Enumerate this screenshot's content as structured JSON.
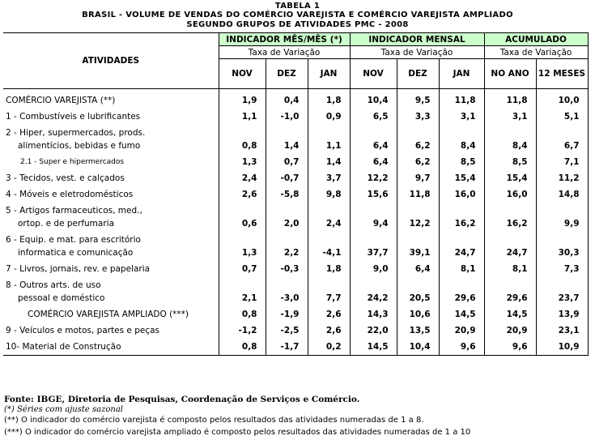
{
  "title": {
    "line1": "TABELA 1",
    "line2": "BRASIL - VOLUME DE VENDAS DO COMÉRCIO VAREJISTA E COMÉRCIO VAREJISTA AMPLIADO",
    "line3": "SEGUNDO GRUPOS DE ATIVIDADES PMC - 2008"
  },
  "header": {
    "activities": "ATIVIDADES",
    "group1": "INDICADOR MÊS/MÊS (*)",
    "group2": "INDICADOR MENSAL",
    "group3": "ACUMULADO",
    "rate": "Taxa de Variação",
    "cols": [
      "NOV",
      "DEZ",
      "JAN",
      "NOV",
      "DEZ",
      "JAN",
      "NO ANO",
      "12 MESES"
    ],
    "header_bg": "#ccffcc"
  },
  "rows": [
    {
      "label": "COMÉRCIO VAREJISTA (**)",
      "values": [
        "1,9",
        "0,4",
        "1,8",
        "10,4",
        "9,5",
        "11,8",
        "11,8",
        "10,0"
      ]
    },
    {
      "label": "1 - Combustíveis e lubrificantes",
      "values": [
        "1,1",
        "-1,0",
        "0,9",
        "6,5",
        "3,3",
        "3,1",
        "3,1",
        "5,1"
      ]
    },
    {
      "label": "2 - Hiper, supermercados, prods.",
      "label2": "alimentícios, bebidas e fumo",
      "values": [
        "0,8",
        "1,4",
        "1,1",
        "6,4",
        "6,2",
        "8,4",
        "8,4",
        "6,7"
      ]
    },
    {
      "label": "2.1 - Super e hipermercados",
      "values": [
        "1,3",
        "0,7",
        "1,4",
        "6,4",
        "6,2",
        "8,5",
        "8,5",
        "7,1"
      ]
    },
    {
      "label": "3 - Tecidos, vest. e calçados",
      "values": [
        "2,4",
        "-0,7",
        "3,7",
        "12,2",
        "9,7",
        "15,4",
        "15,4",
        "11,2"
      ]
    },
    {
      "label": "4 - Móveis e eletrodomésticos",
      "values": [
        "2,6",
        "-5,8",
        "9,8",
        "15,6",
        "11,8",
        "16,0",
        "16,0",
        "14,8"
      ]
    },
    {
      "label": "5 - Artigos farmaceuticos, med.,",
      "label2": "ortop. e de perfumaria",
      "values": [
        "0,6",
        "2,0",
        "2,4",
        "9,4",
        "12,2",
        "16,2",
        "16,2",
        "9,9"
      ]
    },
    {
      "label": "6 - Equip. e mat. para escritório",
      "label2": "informatica e comunicação",
      "values": [
        "1,3",
        "2,2",
        "-4,1",
        "37,7",
        "39,1",
        "24,7",
        "24,7",
        "30,3"
      ]
    },
    {
      "label": "7 - Livros, jornais, rev. e papelaria",
      "values": [
        "0,7",
        "-0,3",
        "1,8",
        "9,0",
        "6,4",
        "8,1",
        "8,1",
        "7,3"
      ]
    },
    {
      "label": "8 - Outros arts. de uso",
      "label2": "pessoal e doméstico",
      "values": [
        "2,1",
        "-3,0",
        "7,7",
        "24,2",
        "20,5",
        "29,6",
        "29,6",
        "23,7"
      ]
    },
    {
      "label": "COMÉRCIO VAREJISTA AMPLIADO (***)",
      "values": [
        "0,8",
        "-1,9",
        "2,6",
        "14,3",
        "10,6",
        "14,5",
        "14,5",
        "13,9"
      ]
    },
    {
      "label": "9 - Veículos e motos, partes e peças",
      "values": [
        "-1,2",
        "-2,5",
        "2,6",
        "22,0",
        "13,5",
        "20,9",
        "20,9",
        "23,1"
      ]
    },
    {
      "label": "10- Material de Construção",
      "values": [
        "0,8",
        "-1,7",
        "0,2",
        "14,5",
        "10,4",
        "9,6",
        "9,6",
        "10,9"
      ]
    }
  ],
  "footer": {
    "source": "Fonte: IBGE, Diretoria de Pesquisas, Coordenação de Serviços e Comércio.",
    "note1": "(*) Séries com ajuste sazonal",
    "note2": "(**) O indicador do comércio varejista é composto pelos resultados das atividades numeradas de 1 a 8.",
    "note3": "(***) O indicador do comércio varejista ampliado é composto pelos resultados das atividades numeradas de 1 a 10"
  }
}
